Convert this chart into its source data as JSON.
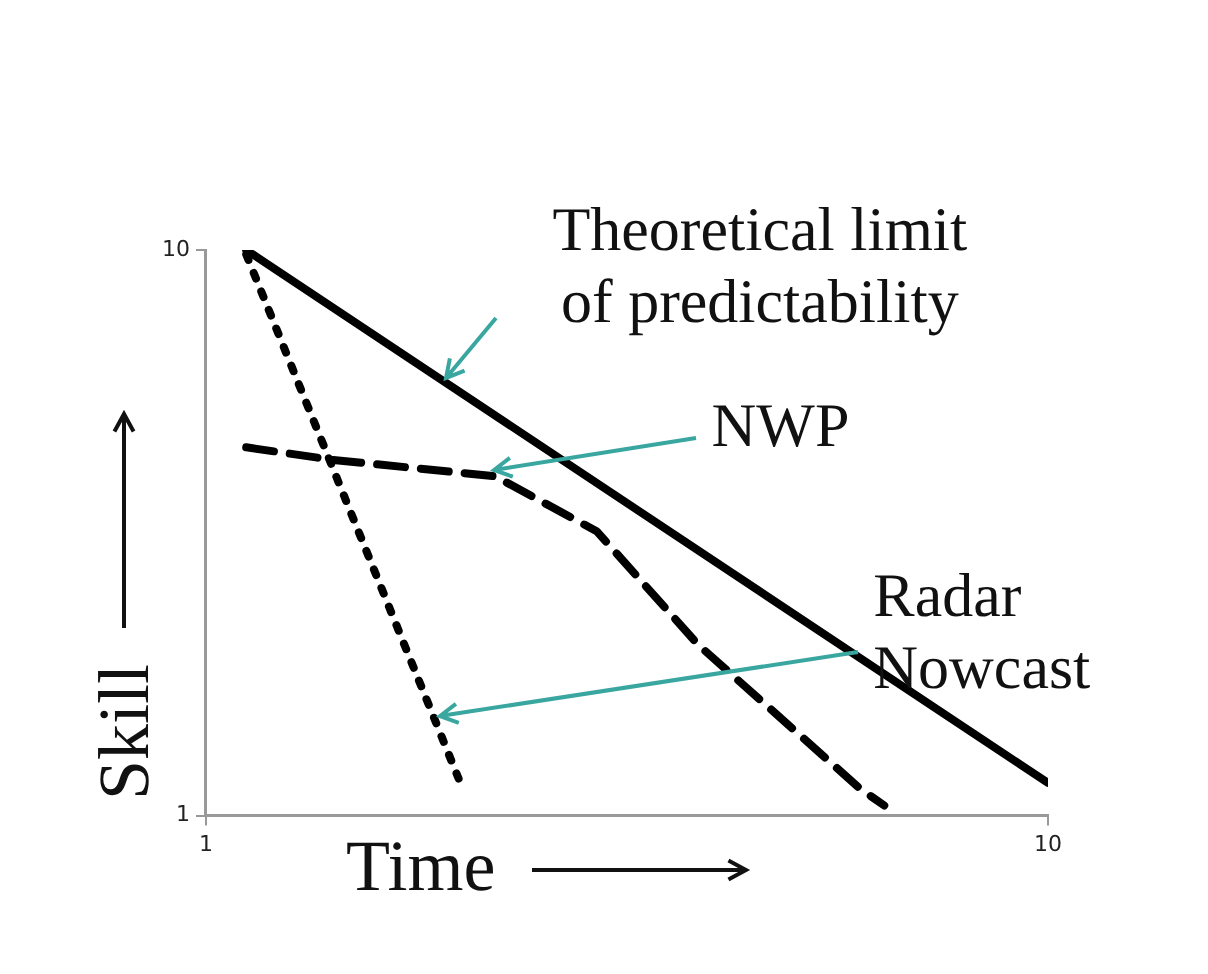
{
  "chart_data": {
    "type": "line",
    "xlabel": "Time",
    "ylabel": "Skill",
    "xlim": [
      1,
      10
    ],
    "ylim": [
      1,
      10
    ],
    "xticks": [
      1,
      10
    ],
    "yticks": [
      1,
      10
    ],
    "grid": false,
    "legend": false,
    "marker": "none",
    "series": [
      {
        "color": "#000000",
        "line_style": "solid",
        "x": [
          1.43,
          10
        ],
        "values": [
          10,
          1.52
        ]
      },
      {
        "color": "#000000",
        "line_style": "dashed",
        "x": [
          1.43,
          2.36,
          4.09,
          5.18,
          6.26,
          7.99,
          8.25
        ],
        "values": [
          6.86,
          6.66,
          6.4,
          5.52,
          3.72,
          1.43,
          1.16
        ]
      },
      {
        "color": "#000000",
        "line_style": "dotted",
        "x": [
          1.43,
          3.7
        ],
        "values": [
          9.93,
          1.59
        ]
      }
    ],
    "annotations": [
      {
        "text": "Theoretical limit of predictability",
        "x": 3.5,
        "y": 7.95
      },
      {
        "text": "NWP",
        "x": 4.01,
        "y": 6.5
      },
      {
        "text": "Radar Nowcast",
        "x": 3.43,
        "y": 2.57
      }
    ]
  }
}
